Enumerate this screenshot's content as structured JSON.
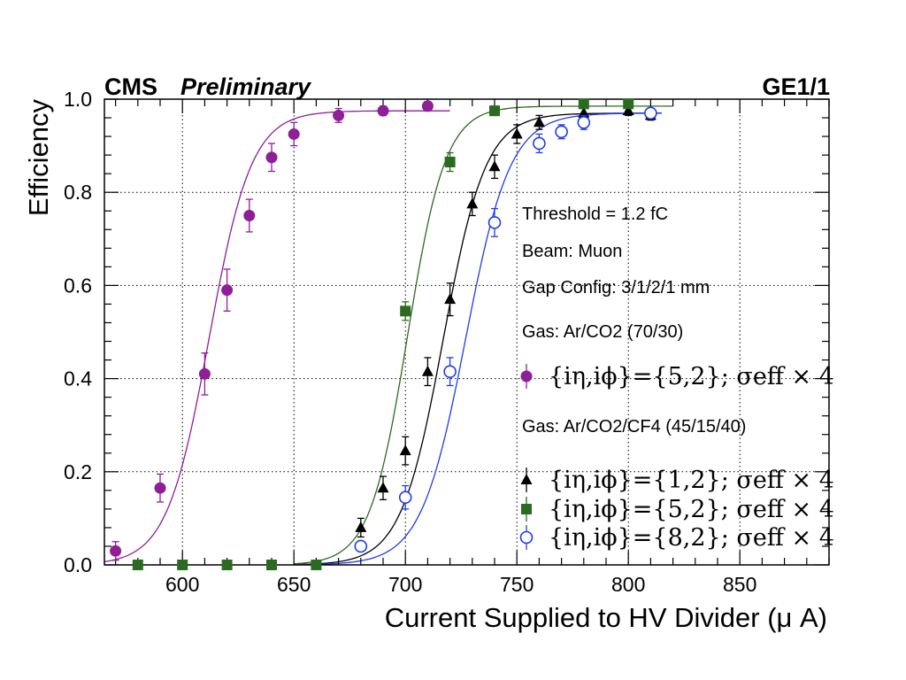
{
  "header": {
    "experiment": "CMS",
    "status": "Preliminary",
    "detector": "GE1/1"
  },
  "chart_data": {
    "type": "scatter",
    "xlabel": "Current Supplied to HV Divider (μ A)",
    "ylabel": "Efficiency",
    "xlim": [
      565,
      890
    ],
    "ylim": [
      0,
      1.0
    ],
    "xticks": [
      600,
      650,
      700,
      750,
      800,
      850
    ],
    "yticks": [
      0.0,
      0.2,
      0.4,
      0.6,
      0.8,
      1.0
    ],
    "xtick_labels": [
      "600",
      "650",
      "700",
      "750",
      "800",
      "850"
    ],
    "ytick_labels": [
      "0.0",
      "0.2",
      "0.4",
      "0.6",
      "0.8",
      "1.0"
    ],
    "grid": true,
    "legend_position": "right",
    "annotations": [
      "Threshold = 1.2 fC",
      "Beam: Muon",
      "Gap Config: 3/1/2/1 mm"
    ],
    "groups": [
      {
        "label": "Gas: Ar/CO2 (70/30)",
        "series": [
          0
        ]
      },
      {
        "label": "Gas: Ar/CO2/CF4 (45/15/40)",
        "series": [
          1,
          2,
          3
        ]
      }
    ],
    "series": [
      {
        "name": "{iη,iϕ}={5,2}; σeff × 4",
        "color": "#8e1f96",
        "marker": "filled-circle",
        "fit": {
          "max": 0.975,
          "x50": 612,
          "width": 9.5,
          "xmin": 565,
          "xmax": 720
        },
        "points": [
          {
            "x": 570,
            "y": 0.03,
            "err": 0.02
          },
          {
            "x": 590,
            "y": 0.165,
            "err": 0.03
          },
          {
            "x": 610,
            "y": 0.41,
            "err": 0.045
          },
          {
            "x": 620,
            "y": 0.59,
            "err": 0.045
          },
          {
            "x": 630,
            "y": 0.75,
            "err": 0.035
          },
          {
            "x": 640,
            "y": 0.875,
            "err": 0.03
          },
          {
            "x": 650,
            "y": 0.925,
            "err": 0.025
          },
          {
            "x": 670,
            "y": 0.965,
            "err": 0.015
          },
          {
            "x": 690,
            "y": 0.975,
            "err": 0.01
          },
          {
            "x": 710,
            "y": 0.985,
            "err": 0.01
          }
        ]
      },
      {
        "name": "{iη,iϕ}={1,2}; σeff × 4",
        "color": "#000000",
        "marker": "filled-triangle",
        "fit": {
          "max": 0.97,
          "x50": 717,
          "width": 9.5,
          "xmin": 650,
          "xmax": 815
        },
        "points": [
          {
            "x": 680,
            "y": 0.08,
            "err": 0.02
          },
          {
            "x": 690,
            "y": 0.165,
            "err": 0.025
          },
          {
            "x": 700,
            "y": 0.245,
            "err": 0.03
          },
          {
            "x": 710,
            "y": 0.415,
            "err": 0.03
          },
          {
            "x": 720,
            "y": 0.57,
            "err": 0.035
          },
          {
            "x": 730,
            "y": 0.775,
            "err": 0.025
          },
          {
            "x": 740,
            "y": 0.855,
            "err": 0.025
          },
          {
            "x": 750,
            "y": 0.925,
            "err": 0.02
          },
          {
            "x": 760,
            "y": 0.95,
            "err": 0.015
          },
          {
            "x": 780,
            "y": 0.97,
            "err": 0.01
          },
          {
            "x": 800,
            "y": 0.975,
            "err": 0.01
          },
          {
            "x": 810,
            "y": 0.965,
            "err": 0.01
          }
        ]
      },
      {
        "name": "{iη,iϕ}={5,2}; σeff × 4",
        "color": "#2b6b1f",
        "marker": "filled-square",
        "fit": {
          "max": 0.985,
          "x50": 701,
          "width": 8.5,
          "xmin": 650,
          "xmax": 820
        },
        "points": [
          {
            "x": 580,
            "y": 0.0,
            "err": 0.0
          },
          {
            "x": 600,
            "y": 0.0,
            "err": 0.0
          },
          {
            "x": 620,
            "y": 0.0,
            "err": 0.0
          },
          {
            "x": 640,
            "y": 0.0,
            "err": 0.0
          },
          {
            "x": 660,
            "y": 0.0,
            "err": 0.0
          },
          {
            "x": 700,
            "y": 0.545,
            "err": 0.02
          },
          {
            "x": 720,
            "y": 0.865,
            "err": 0.02
          },
          {
            "x": 740,
            "y": 0.975,
            "err": 0.01
          },
          {
            "x": 780,
            "y": 0.99,
            "err": 0.005
          },
          {
            "x": 800,
            "y": 0.99,
            "err": 0.005
          }
        ]
      },
      {
        "name": "{iη,iϕ}={8,2}; σeff × 4",
        "color": "#1f3de6",
        "marker": "open-circle",
        "fit": {
          "max": 0.97,
          "x50": 727,
          "width": 10,
          "xmin": 650,
          "xmax": 815
        },
        "points": [
          {
            "x": 680,
            "y": 0.04,
            "err": 0.01
          },
          {
            "x": 700,
            "y": 0.145,
            "err": 0.025
          },
          {
            "x": 720,
            "y": 0.415,
            "err": 0.03
          },
          {
            "x": 740,
            "y": 0.735,
            "err": 0.03
          },
          {
            "x": 760,
            "y": 0.905,
            "err": 0.02
          },
          {
            "x": 770,
            "y": 0.93,
            "err": 0.015
          },
          {
            "x": 780,
            "y": 0.95,
            "err": 0.015
          },
          {
            "x": 810,
            "y": 0.97,
            "err": 0.01
          }
        ]
      }
    ]
  }
}
